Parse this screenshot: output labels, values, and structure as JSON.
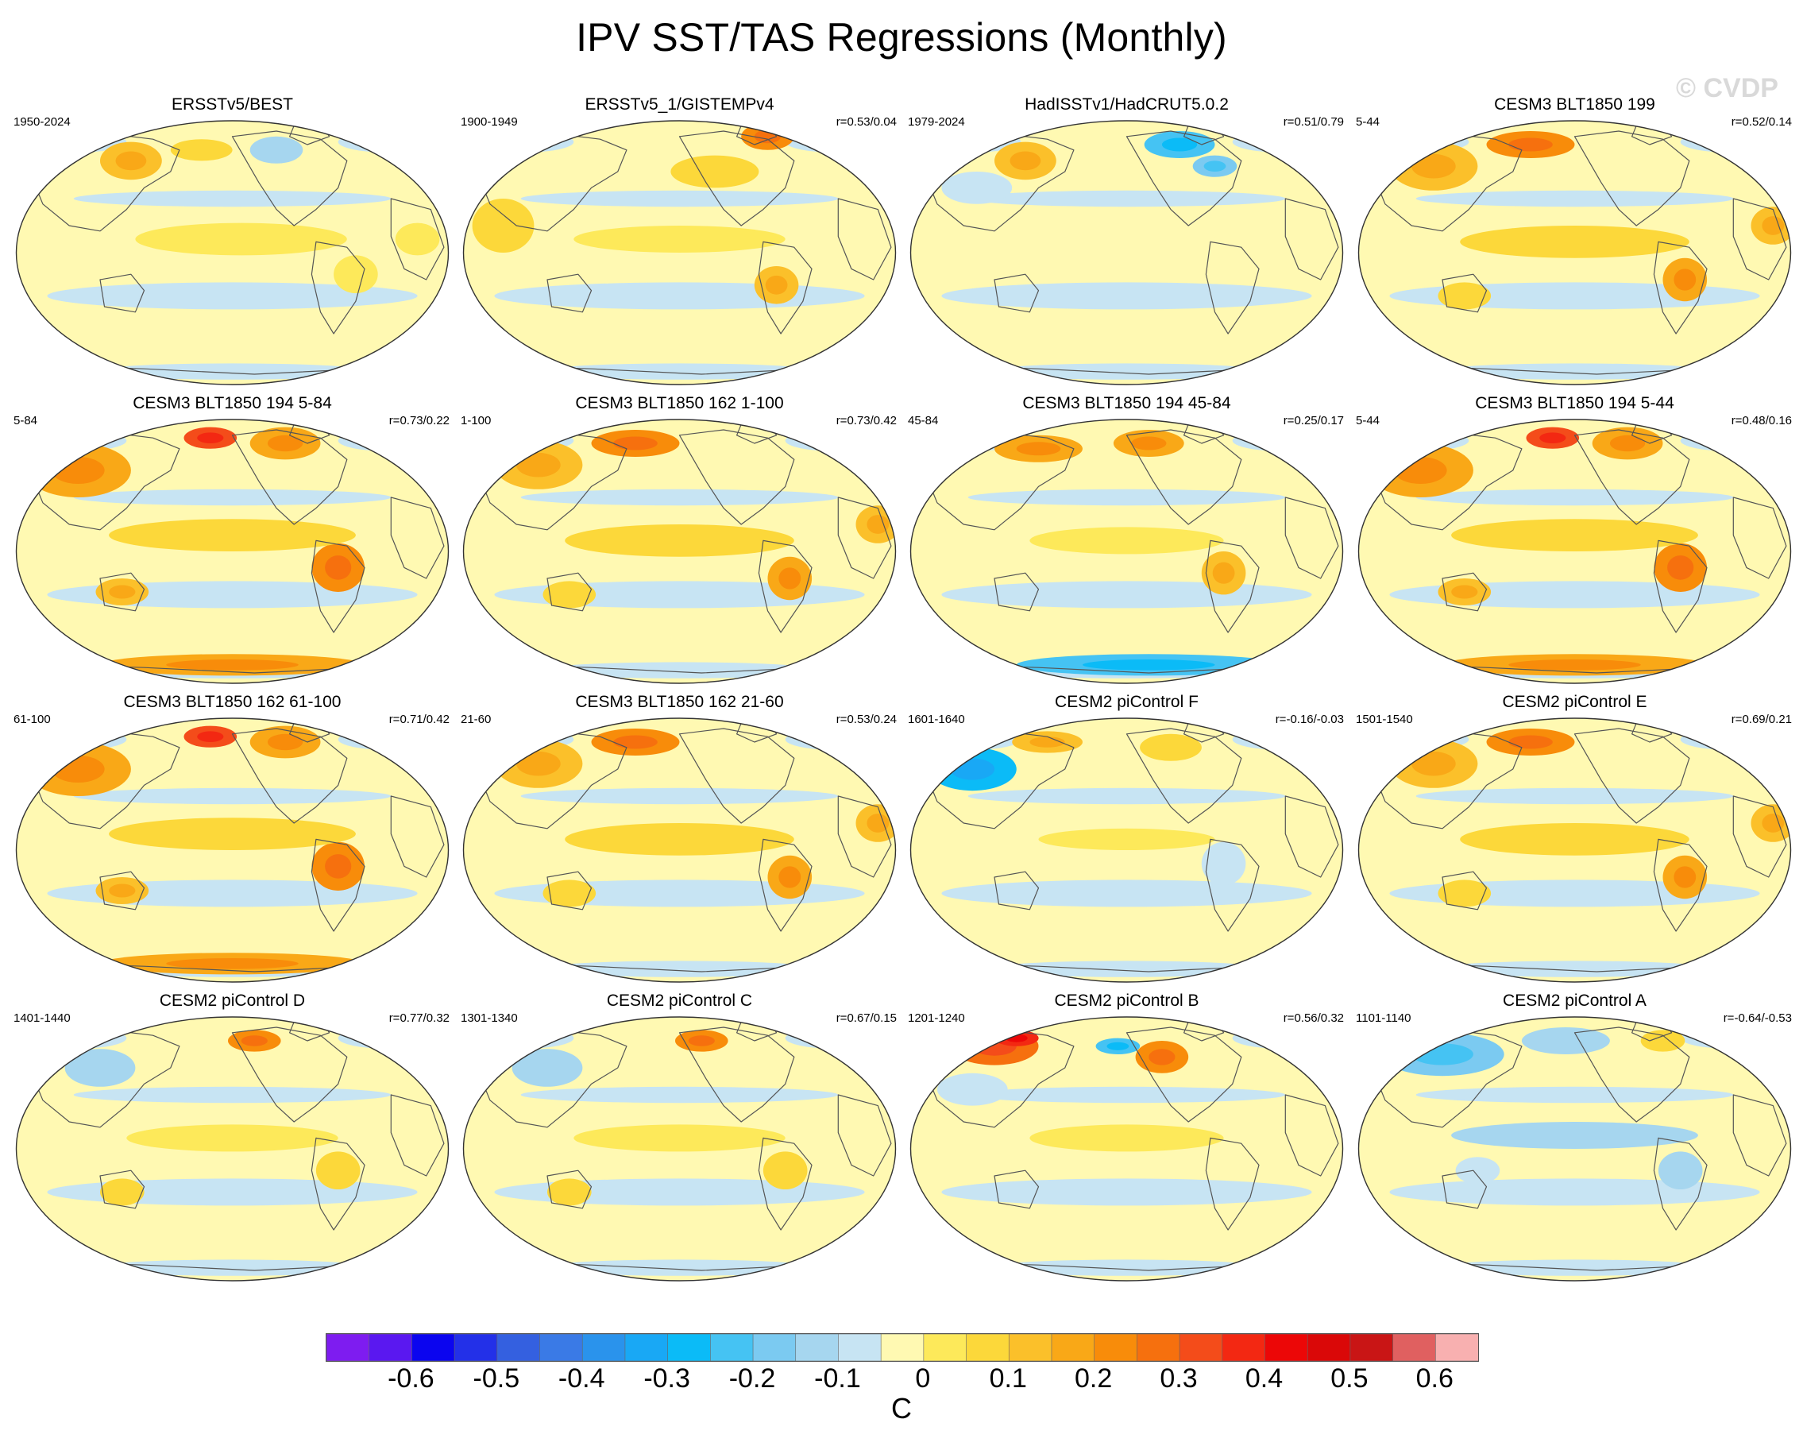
{
  "title": "IPV SST/TAS Regressions (Monthly)",
  "watermark": "© CVDP",
  "colors": {
    "palette": [
      "#7e1cf0",
      "#5a18f0",
      "#0b05ef",
      "#2330e8",
      "#3460e0",
      "#3a7ae6",
      "#2a93ec",
      "#19a8f5",
      "#0bbbf7",
      "#45c3f3",
      "#7bcaf1",
      "#a6d6ef",
      "#c7e4f3",
      "#fff9b2",
      "#fde95a",
      "#fcd83a",
      "#fbc02a",
      "#f9a817",
      "#f88c0a",
      "#f6700e",
      "#f44c1a",
      "#f32812",
      "#ec0707",
      "#da0808",
      "#c91515",
      "#e06060",
      "#f8b0b0"
    ],
    "coast": "#555555",
    "land_ocean_base": "#fff9b2"
  },
  "colorbar": {
    "labels": [
      "-0.6",
      "-0.5",
      "-0.4",
      "-0.3",
      "-0.2",
      "-0.1",
      "0",
      "0.1",
      "0.2",
      "0.3",
      "0.4",
      "0.5",
      "0.6"
    ],
    "unit": "C"
  },
  "panels": [
    {
      "title": "ERSSTv5/BEST",
      "period": "1950-2024",
      "r": "",
      "pattern": "obs1"
    },
    {
      "title": "ERSSTv5_1/GISTEMPv4",
      "period": "1900-1949",
      "r": "r=0.53/0.04",
      "pattern": "obs2"
    },
    {
      "title": "HadISSTv1/HadCRUT5.0.2",
      "period": "1979-2024",
      "r": "r=0.51/0.79",
      "pattern": "obs3"
    },
    {
      "title": "CESM3 BLT1850 199",
      "period": "5-44",
      "r": "r=0.52/0.14",
      "pattern": "warm"
    },
    {
      "title": "CESM3 BLT1850 194 5-84",
      "period": "5-84",
      "r": "r=0.73/0.22",
      "pattern": "warmstrong"
    },
    {
      "title": "CESM3 BLT1850 162 1-100",
      "period": "1-100",
      "r": "r=0.73/0.42",
      "pattern": "warm"
    },
    {
      "title": "CESM3 BLT1850 194 45-84",
      "period": "45-84",
      "r": "r=0.25/0.17",
      "pattern": "coolsouth"
    },
    {
      "title": "CESM3 BLT1850 194 5-44",
      "period": "5-44",
      "r": "r=0.48/0.16",
      "pattern": "warmstrong"
    },
    {
      "title": "CESM3 BLT1850 162 61-100",
      "period": "61-100",
      "r": "r=0.71/0.42",
      "pattern": "warmstrong"
    },
    {
      "title": "CESM3 BLT1850 162 21-60",
      "period": "21-60",
      "r": "r=0.53/0.24",
      "pattern": "warm"
    },
    {
      "title": "CESM2 piControl F",
      "period": "1601-1640",
      "r": "r=-0.16/-0.03",
      "pattern": "coolasia"
    },
    {
      "title": "CESM2 piControl E",
      "period": "1501-1540",
      "r": "r=0.69/0.21",
      "pattern": "warm"
    },
    {
      "title": "CESM2 piControl D",
      "period": "1401-1440",
      "r": "r=0.77/0.32",
      "pattern": "mild"
    },
    {
      "title": "CESM2 piControl C",
      "period": "1301-1340",
      "r": "r=0.67/0.15",
      "pattern": "mild"
    },
    {
      "title": "CESM2 piControl B",
      "period": "1201-1240",
      "r": "r=0.56/0.32",
      "pattern": "warmasia"
    },
    {
      "title": "CESM2 piControl A",
      "period": "1101-1140",
      "r": "r=-0.64/-0.53",
      "pattern": "cool"
    }
  ]
}
